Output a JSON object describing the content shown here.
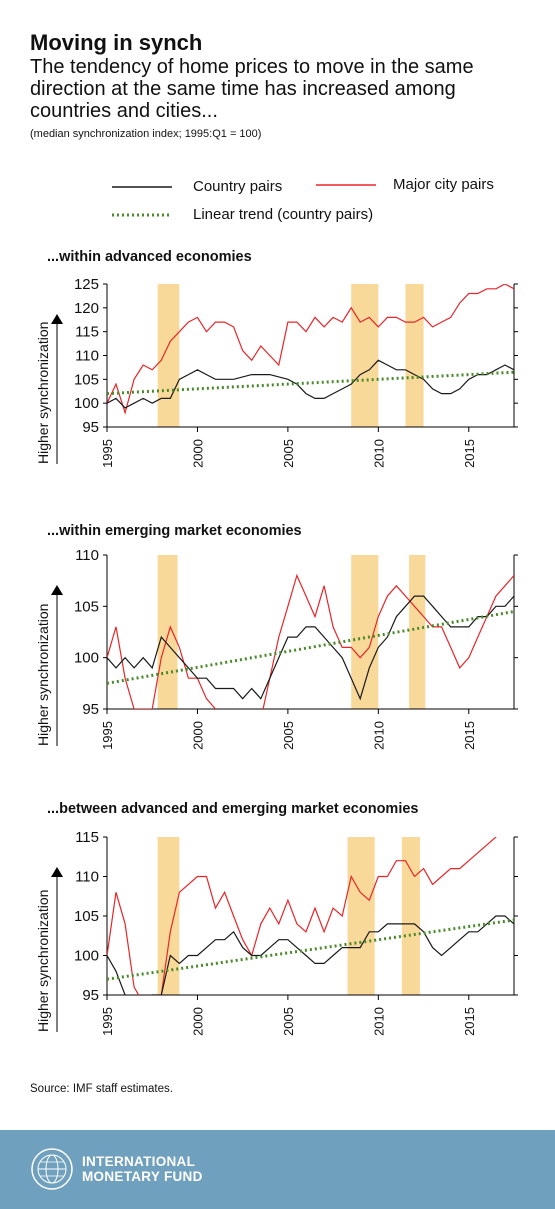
{
  "header": {
    "title": "Moving in synch",
    "subtitle": "The tendency of home prices to move in the same direction at the same time has increased among countries and cities...",
    "note": "(median synchronization index; 1995:Q1 = 100)"
  },
  "legend": {
    "country_pairs": "Country pairs",
    "city_pairs": "Major city pairs",
    "trend": "Linear trend (country pairs)"
  },
  "colors": {
    "country": "#1a1a1a",
    "city": "#e8262a",
    "trend": "#4a8a2a",
    "band": "#f9d99a",
    "footer": "#6fa0be"
  },
  "source": "Source: IMF staff estimates.",
  "footer": {
    "line1": "INTERNATIONAL",
    "line2": "MONETARY FUND",
    "logo_icon": "imf-seal-icon"
  },
  "chart_data": [
    {
      "type": "line",
      "title": "...within advanced economies",
      "ylabel": "Higher synchronization",
      "ylim": [
        95,
        125
      ],
      "yticks": [
        95,
        100,
        105,
        110,
        115,
        120,
        125
      ],
      "xlim": [
        1995,
        2017.5
      ],
      "xticks": [
        1995,
        2000,
        2005,
        2010,
        2015
      ],
      "bands": [
        [
          1997.8,
          1999.0
        ],
        [
          2008.5,
          2010.0
        ],
        [
          2011.5,
          2012.5
        ]
      ],
      "series": [
        {
          "name": "Country pairs",
          "x": [
            1995,
            1995.5,
            1996,
            1996.5,
            1997,
            1997.5,
            1998,
            1998.5,
            1999,
            1999.5,
            2000,
            2000.5,
            2001,
            2002,
            2003,
            2004,
            2005,
            2005.5,
            2006,
            2006.5,
            2007,
            2007.5,
            2008,
            2008.5,
            2009,
            2009.5,
            2010,
            2010.5,
            2011,
            2011.5,
            2012,
            2012.5,
            2013,
            2013.5,
            2014,
            2014.5,
            2015,
            2015.5,
            2016,
            2016.5,
            2017,
            2017.5
          ],
          "values": [
            100,
            101,
            99,
            100,
            101,
            100,
            101,
            101,
            105,
            106,
            107,
            106,
            105,
            105,
            106,
            106,
            105,
            104,
            102,
            101,
            101,
            102,
            103,
            104,
            106,
            107,
            109,
            108,
            107,
            107,
            106,
            105,
            103,
            102,
            102,
            103,
            105,
            106,
            106,
            107,
            108,
            107
          ]
        },
        {
          "name": "Major city pairs",
          "x": [
            1995,
            1995.5,
            1996,
            1996.5,
            1997,
            1997.5,
            1998,
            1998.5,
            1999,
            1999.5,
            2000,
            2000.5,
            2001,
            2001.5,
            2002,
            2002.5,
            2003,
            2003.5,
            2004,
            2004.5,
            2005,
            2005.5,
            2006,
            2006.5,
            2007,
            2007.5,
            2008,
            2008.5,
            2009,
            2009.5,
            2010,
            2010.5,
            2011,
            2011.5,
            2012,
            2012.5,
            2013,
            2013.5,
            2014,
            2014.5,
            2015,
            2015.5,
            2016,
            2016.5,
            2017,
            2017.5
          ],
          "values": [
            100,
            104,
            98,
            105,
            108,
            107,
            109,
            113,
            115,
            117,
            118,
            115,
            117,
            117,
            116,
            111,
            109,
            112,
            110,
            108,
            117,
            117,
            115,
            118,
            116,
            118,
            117,
            120,
            117,
            118,
            116,
            118,
            118,
            117,
            117,
            118,
            116,
            117,
            118,
            121,
            123,
            123,
            124,
            124,
            125,
            124
          ]
        },
        {
          "name": "Linear trend (country pairs)",
          "x": [
            1995,
            2017.5
          ],
          "values": [
            102,
            106.5
          ]
        }
      ]
    },
    {
      "type": "line",
      "title": "...within emerging market economies",
      "ylabel": "Higher synchronization",
      "ylim": [
        95,
        110
      ],
      "yticks": [
        95,
        100,
        105,
        110
      ],
      "xlim": [
        1995,
        2017.5
      ],
      "xticks": [
        1995,
        2000,
        2005,
        2010,
        2015
      ],
      "bands": [
        [
          1997.8,
          1998.9
        ],
        [
          2008.5,
          2010.0
        ],
        [
          2011.7,
          2012.6
        ]
      ],
      "series": [
        {
          "name": "Country pairs",
          "x": [
            1995,
            1995.5,
            1996,
            1996.5,
            1997,
            1997.5,
            1998,
            1998.5,
            1999,
            1999.5,
            2000,
            2000.5,
            2001,
            2001.5,
            2002,
            2002.5,
            2003,
            2003.5,
            2004,
            2004.5,
            2005,
            2005.5,
            2006,
            2006.5,
            2007,
            2007.5,
            2008,
            2008.5,
            2009,
            2009.5,
            2010,
            2010.5,
            2011,
            2011.5,
            2012,
            2012.5,
            2013,
            2013.5,
            2014,
            2014.5,
            2015,
            2015.5,
            2016,
            2016.5,
            2017,
            2017.5
          ],
          "values": [
            100,
            99,
            100,
            99,
            100,
            99,
            102,
            101,
            100,
            99,
            98,
            98,
            97,
            97,
            97,
            96,
            97,
            96,
            98,
            100,
            102,
            102,
            103,
            103,
            102,
            101,
            100,
            98,
            96,
            99,
            101,
            102,
            104,
            105,
            106,
            106,
            105,
            104,
            103,
            103,
            103,
            104,
            104,
            105,
            105,
            106
          ]
        },
        {
          "name": "Major city pairs",
          "x": [
            1995,
            1995.5,
            1996,
            1996.5,
            1997,
            1997.5,
            1998,
            1998.5,
            1999,
            1999.5,
            2000,
            2000.5,
            2001,
            2001.5,
            2002,
            2002.5,
            2003,
            2003.5,
            2004,
            2004.5,
            2005,
            2005.5,
            2006,
            2006.5,
            2007,
            2007.5,
            2008,
            2008.5,
            2009,
            2009.5,
            2010,
            2010.5,
            2011,
            2011.5,
            2012,
            2012.5,
            2013,
            2013.5,
            2014,
            2014.5,
            2015,
            2015.5,
            2016,
            2016.5,
            2017,
            2017.5
          ],
          "values": [
            100,
            103,
            98,
            95,
            95,
            95,
            100,
            103,
            101,
            98,
            98,
            96,
            95,
            94,
            93,
            92,
            93,
            94,
            98,
            102,
            105,
            108,
            106,
            104,
            107,
            103,
            101,
            101,
            100,
            101,
            104,
            106,
            107,
            106,
            105,
            104,
            103,
            103,
            101,
            99,
            100,
            102,
            104,
            106,
            107,
            108
          ]
        },
        {
          "name": "Linear trend (country pairs)",
          "x": [
            1995,
            2017.5
          ],
          "values": [
            97.5,
            104.5
          ]
        }
      ]
    },
    {
      "type": "line",
      "title": "...between advanced and emerging market economies",
      "ylabel": "Higher synchronization",
      "ylim": [
        95,
        115
      ],
      "yticks": [
        95,
        100,
        105,
        110,
        115
      ],
      "xlim": [
        1995,
        2017.5
      ],
      "xticks": [
        1995,
        2000,
        2005,
        2010,
        2015
      ],
      "bands": [
        [
          1997.8,
          1999.0
        ],
        [
          2008.3,
          2009.8
        ],
        [
          2011.3,
          2012.3
        ]
      ],
      "series": [
        {
          "name": "Country pairs",
          "x": [
            1995,
            1995.5,
            1996,
            1996.5,
            1997,
            1997.5,
            1998,
            1998.5,
            1999,
            1999.5,
            2000,
            2000.5,
            2001,
            2001.5,
            2002,
            2002.5,
            2003,
            2003.5,
            2004,
            2004.5,
            2005,
            2005.5,
            2006,
            2006.5,
            2007,
            2007.5,
            2008,
            2008.5,
            2009,
            2009.5,
            2010,
            2010.5,
            2011,
            2011.5,
            2012,
            2012.5,
            2013,
            2013.5,
            2014,
            2014.5,
            2015,
            2015.5,
            2016,
            2016.5,
            2017,
            2017.5
          ],
          "values": [
            100,
            98,
            95,
            93,
            94,
            95,
            95,
            100,
            99,
            100,
            100,
            101,
            102,
            102,
            103,
            101,
            100,
            100,
            101,
            102,
            102,
            101,
            100,
            99,
            99,
            100,
            101,
            101,
            101,
            103,
            103,
            104,
            104,
            104,
            104,
            103,
            101,
            100,
            101,
            102,
            103,
            103,
            104,
            105,
            105,
            104
          ]
        },
        {
          "name": "Major city pairs",
          "x": [
            1995,
            1995.5,
            1996,
            1996.5,
            1997,
            1997.5,
            1998,
            1998.5,
            1999,
            1999.5,
            2000,
            2000.5,
            2001,
            2001.5,
            2002,
            2002.5,
            2003,
            2003.5,
            2004,
            2004.5,
            2005,
            2005.5,
            2006,
            2006.5,
            2007,
            2007.5,
            2008,
            2008.5,
            2009,
            2009.5,
            2010,
            2010.5,
            2011,
            2011.5,
            2012,
            2012.5,
            2013,
            2013.5,
            2014,
            2014.5,
            2015,
            2015.5,
            2016,
            2016.5,
            2017,
            2017.5
          ],
          "values": [
            100,
            108,
            104,
            96,
            94,
            95,
            95,
            103,
            108,
            109,
            110,
            110,
            106,
            108,
            105,
            102,
            100,
            104,
            106,
            104,
            107,
            104,
            103,
            106,
            103,
            106,
            105,
            110,
            108,
            107,
            110,
            110,
            112,
            112,
            110,
            111,
            109,
            110,
            111,
            111,
            112,
            113,
            114,
            115,
            116,
            115
          ]
        },
        {
          "name": "Linear trend (country pairs)",
          "x": [
            1995,
            2017.5
          ],
          "values": [
            97,
            104.5
          ]
        }
      ]
    }
  ]
}
